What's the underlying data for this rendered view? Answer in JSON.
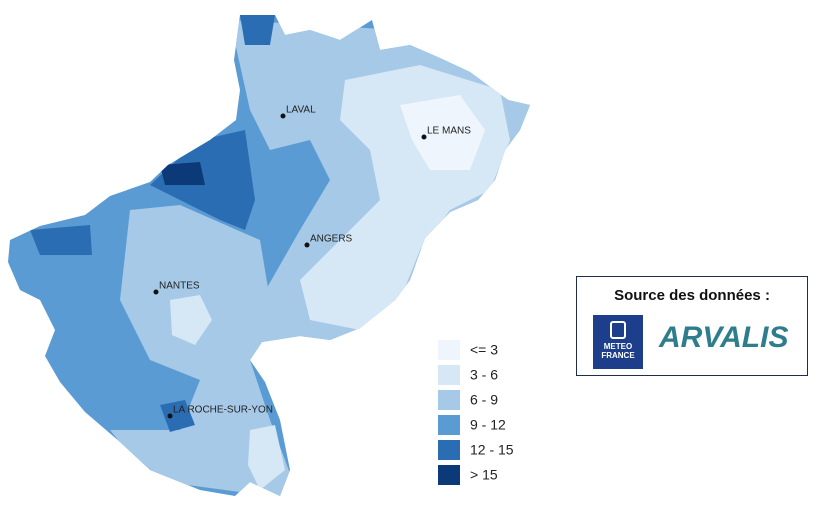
{
  "map": {
    "cities": [
      {
        "name": "LAVAL"
      },
      {
        "name": "LE MANS"
      },
      {
        "name": "ANGERS"
      },
      {
        "name": "NANTES"
      },
      {
        "name": "LA ROCHE-SUR-YON"
      }
    ],
    "legend": {
      "items": [
        {
          "label": "<= 3",
          "color": "#eef5fc"
        },
        {
          "label": "3 - 6",
          "color": "#d6e7f6"
        },
        {
          "label": "6 - 9",
          "color": "#a5c9e7"
        },
        {
          "label": "9 - 12",
          "color": "#5b9bd3"
        },
        {
          "label": "12 - 15",
          "color": "#2b6db2"
        },
        {
          "label": "> 15",
          "color": "#0c3a78"
        }
      ]
    },
    "source": {
      "title": "Source des données :",
      "logos": [
        {
          "lines": [
            "METEO",
            "FRANCE"
          ]
        },
        {
          "text": "ARVALIS"
        }
      ]
    }
  }
}
